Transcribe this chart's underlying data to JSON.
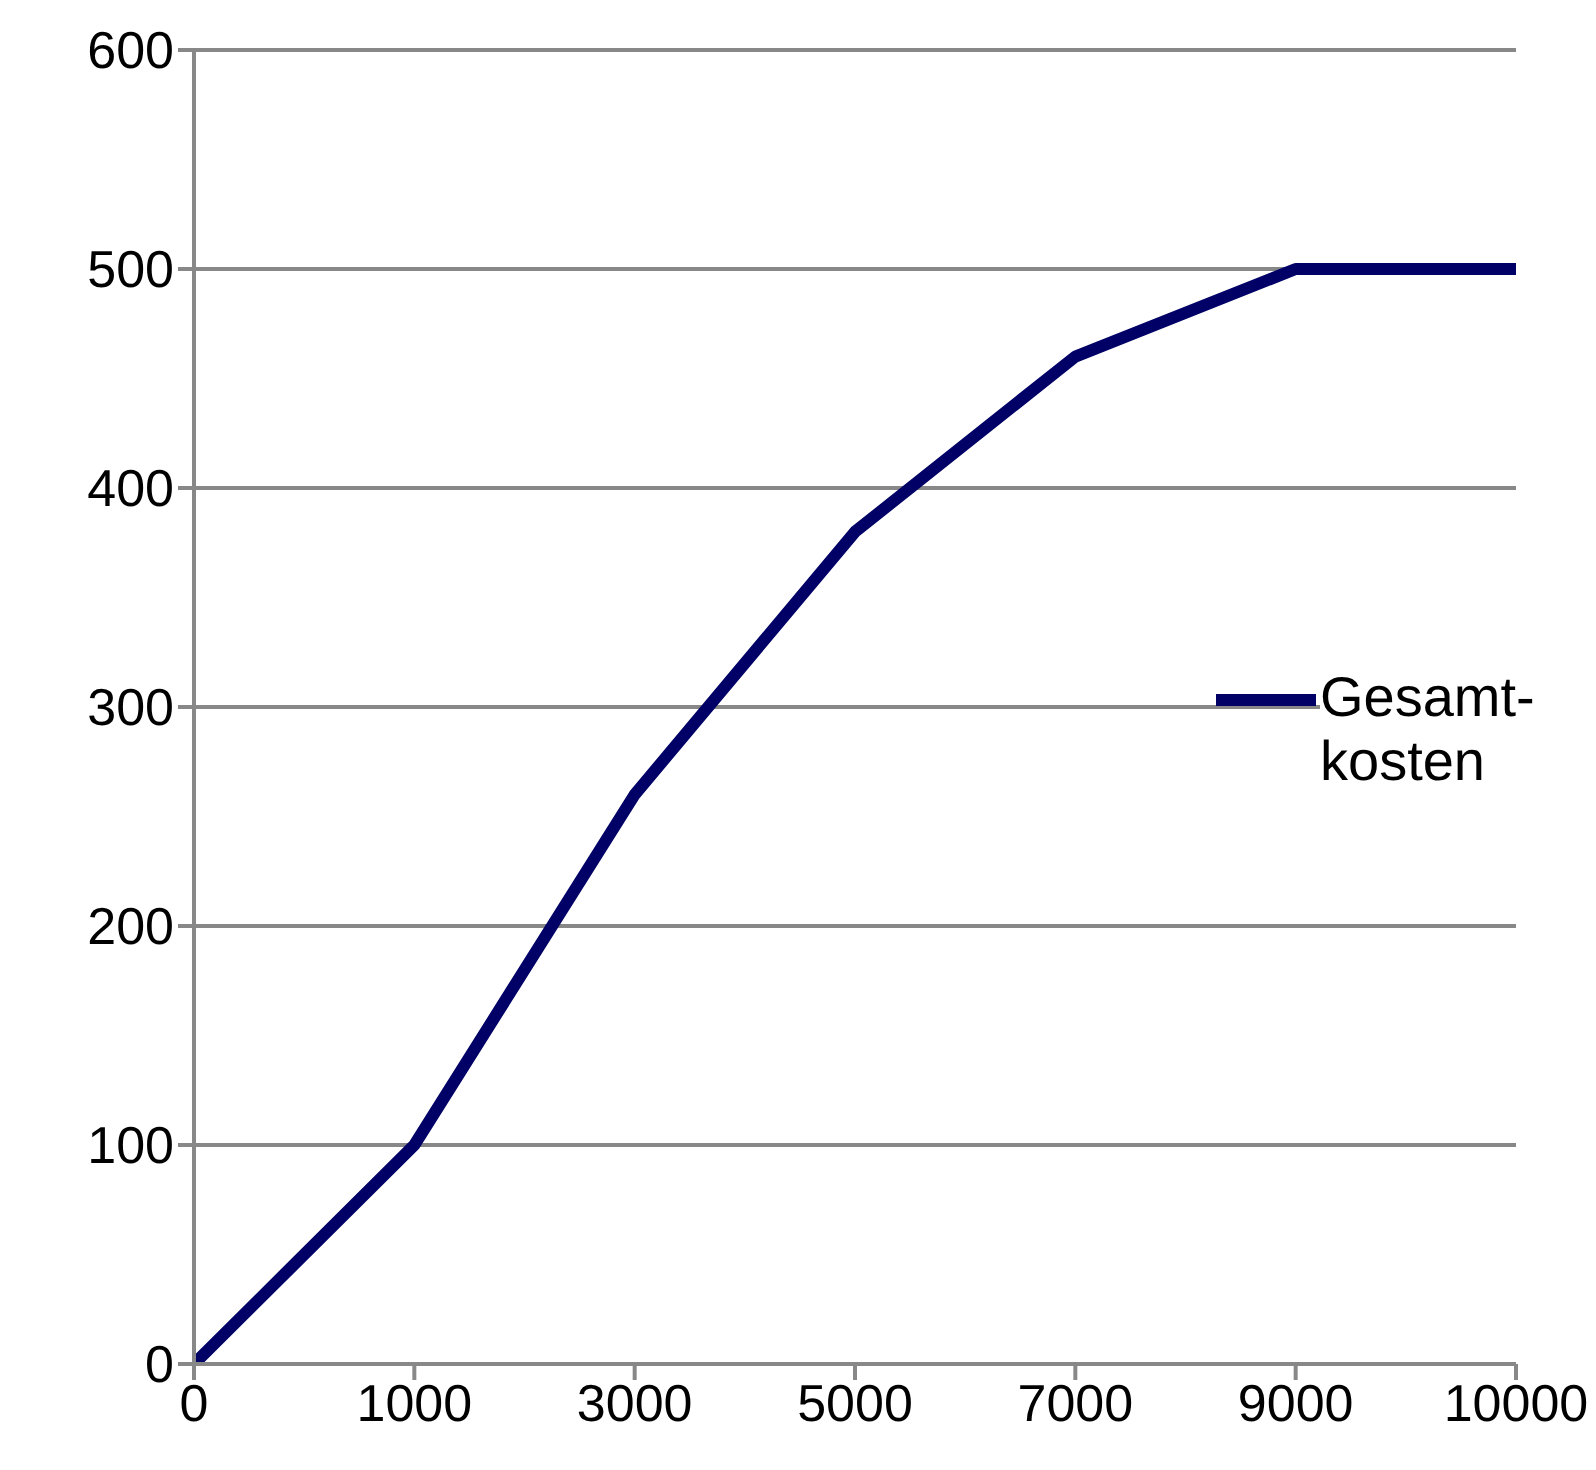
{
  "chart_data": {
    "type": "line",
    "categories": [
      "0",
      "1000",
      "3000",
      "5000",
      "7000",
      "9000",
      "10000"
    ],
    "series": [
      {
        "name": "Gesamt-kosten",
        "color": "#000066",
        "values": [
          0,
          100,
          260,
          380,
          460,
          500,
          500
        ]
      }
    ],
    "ylim": [
      0,
      600
    ],
    "yticks": [
      0,
      100,
      200,
      300,
      400,
      500,
      600
    ],
    "grid": "y",
    "legend": "right",
    "marker": "none",
    "line_style": "solid"
  }
}
